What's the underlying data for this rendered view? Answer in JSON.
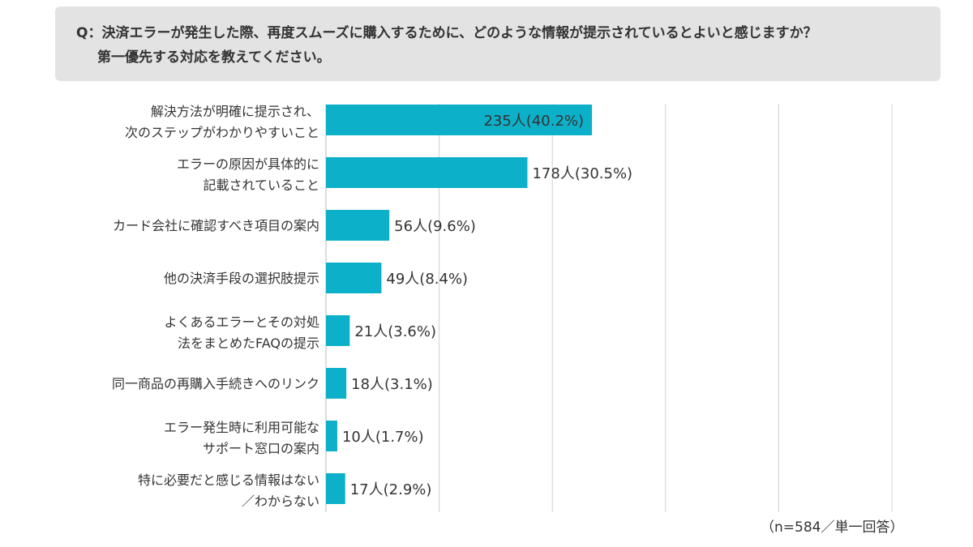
{
  "question": {
    "line1": "Q：決済エラーが発生した際、再度スムーズに購入するために、どのような情報が提示されているとよいと感じますか？",
    "line2": "第一優先する対応を教えてください。"
  },
  "note": "（n=584／単一回答）",
  "colors": {
    "bar": "#0db0c9",
    "grid": "#d0d0d0",
    "axis": "#bbbbbb",
    "qbox": "#e3e3e3"
  },
  "chart_data": {
    "type": "bar",
    "orientation": "horizontal",
    "xlim": [
      0,
      500
    ],
    "grid": true,
    "categories": [
      [
        "解決方法が明確に提示され、",
        "次のステップがわかりやすいこと"
      ],
      [
        "エラーの原因が具体的に",
        "記載されていること"
      ],
      [
        "カード会社に確認すべき項目の案内"
      ],
      [
        "他の決済手段の選択肢提示"
      ],
      [
        "よくあるエラーとその対処",
        "法をまとめたFAQの提示"
      ],
      [
        "同一商品の再購入手続きへのリンク"
      ],
      [
        "エラー発生時に利用可能な",
        "サポート窓口の案内"
      ],
      [
        "特に必要だと感じる情報はない",
        "／わからない"
      ]
    ],
    "values": [
      235,
      178,
      56,
      49,
      21,
      18,
      10,
      17
    ],
    "data_labels": [
      "235人(40.2%)",
      "178人(30.5%)",
      "56人(9.6%)",
      "49人(8.4%)",
      "21人(3.6%)",
      "18人(3.1%)",
      "10人(1.7%)",
      "17人(2.9%)"
    ]
  }
}
